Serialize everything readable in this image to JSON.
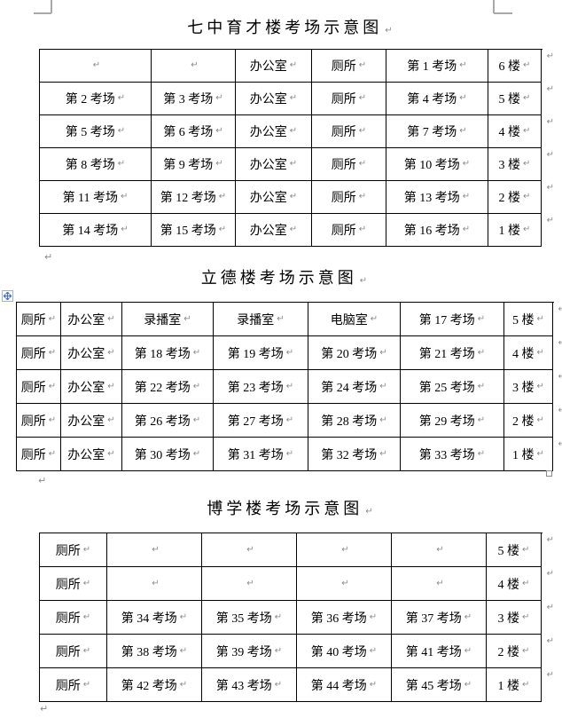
{
  "marks": {
    "cell_end": "↵",
    "paragraph": "↵"
  },
  "colors": {
    "border": "#000000",
    "mark_gray": "#8a8a8a",
    "margin_mark_gray": "#a9a9a9",
    "handle_blue": "#4a72b8"
  },
  "icons": {
    "move_handle": "move-cross-arrows-icon",
    "resize_handle": "resize-square-icon"
  },
  "sections": [
    {
      "title": "七中育才楼考场示意图",
      "table": {
        "rows": [
          [
            "",
            "",
            "办公室",
            "厕所",
            "第 1 考场",
            "6 楼"
          ],
          [
            "第 2 考场",
            "第 3 考场",
            "办公室",
            "厕所",
            "第 4 考场",
            "5 楼"
          ],
          [
            "第 5 考场",
            "第 6 考场",
            "办公室",
            "厕所",
            "第 7 考场",
            "4 楼"
          ],
          [
            "第 8 考场",
            "第 9 考场",
            "办公室",
            "厕所",
            "第 10 考场",
            "3 楼"
          ],
          [
            "第 11 考场",
            "第 12 考场",
            "办公室",
            "厕所",
            "第 13 考场",
            "2 楼"
          ],
          [
            "第 14 考场",
            "第 15 考场",
            "办公室",
            "厕所",
            "第 16 考场",
            "1 楼"
          ]
        ]
      }
    },
    {
      "title": "立德楼考场示意图",
      "table": {
        "rows": [
          [
            "厕所",
            "办公室",
            "录播室",
            "录播室",
            "电脑室",
            "第 17 考场",
            "5 楼"
          ],
          [
            "厕所",
            "办公室",
            "第 18 考场",
            "第 19 考场",
            "第 20 考场",
            "第 21 考场",
            "4 楼"
          ],
          [
            "厕所",
            "办公室",
            "第 22 考场",
            "第 23 考场",
            "第 24 考场",
            "第 25 考场",
            "3 楼"
          ],
          [
            "厕所",
            "办公室",
            "第 26 考场",
            "第 27 考场",
            "第 28 考场",
            "第 29 考场",
            "2 楼"
          ],
          [
            "厕所",
            "办公室",
            "第 30 考场",
            "第 31 考场",
            "第 32 考场",
            "第 33 考场",
            "1 楼"
          ]
        ]
      }
    },
    {
      "title": "博学楼考场示意图",
      "table": {
        "rows": [
          [
            "厕所",
            "",
            "",
            "",
            "",
            "5 楼"
          ],
          [
            "厕所",
            "",
            "",
            "",
            "",
            "4 楼"
          ],
          [
            "厕所",
            "第 34 考场",
            "第 35 考场",
            "第 36 考场",
            "第 37 考场",
            "3 楼"
          ],
          [
            "厕所",
            "第 38 考场",
            "第 39 考场",
            "第 40 考场",
            "第 41 考场",
            "2 楼"
          ],
          [
            "厕所",
            "第 42 考场",
            "第 43 考场",
            "第 44 考场",
            "第 45 考场",
            "1 楼"
          ]
        ]
      }
    }
  ]
}
